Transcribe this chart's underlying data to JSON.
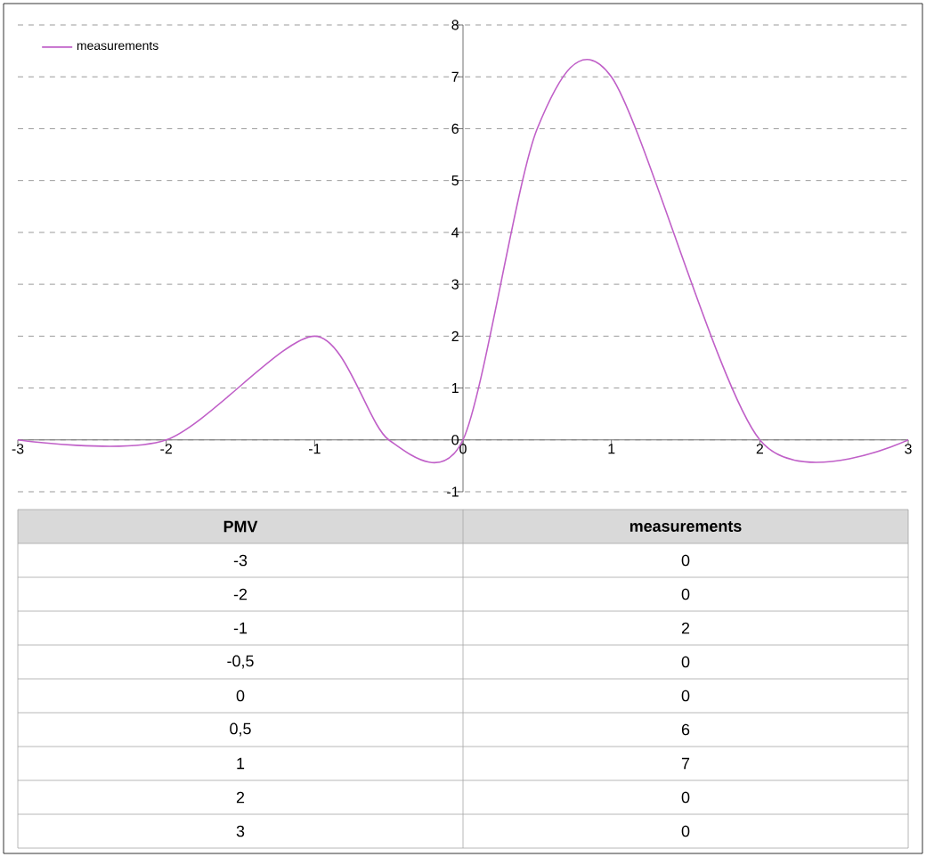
{
  "chart_data": {
    "type": "line",
    "xlabel": "PMV",
    "x": [
      -3,
      -2,
      -1,
      -0.5,
      0,
      0.5,
      1,
      2,
      3
    ],
    "series": [
      {
        "name": "measurements",
        "color": "#c060c8",
        "values": [
          0,
          0,
          2,
          0,
          0,
          6,
          7,
          0,
          0
        ]
      }
    ],
    "xlim": [
      -3,
      3
    ],
    "ylim": [
      -1,
      8
    ],
    "xticks": [
      -3,
      -2,
      -1,
      0,
      1,
      2,
      3
    ],
    "yticks": [
      -1,
      0,
      1,
      2,
      3,
      4,
      5,
      6,
      7,
      8
    ],
    "grid": "y",
    "legend": "top left",
    "marker": "none",
    "line_style": "solid",
    "annotations": [
      "-3",
      "0",
      "-2",
      "0",
      "-1",
      "2",
      "-0,5",
      "0",
      "0",
      "0",
      "0,5",
      "6",
      "1",
      "7",
      "2",
      "0",
      "3",
      "0"
    ]
  }
}
